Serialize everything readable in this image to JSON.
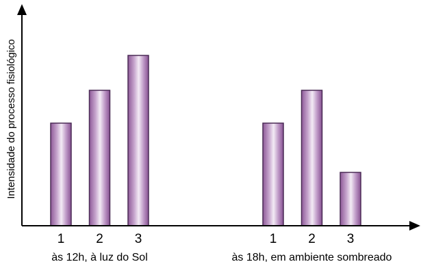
{
  "chart_data": {
    "type": "bar",
    "title": "",
    "xlabel": "",
    "ylabel": "Intensidade do processo fisiológico",
    "y_ticks_shown": false,
    "grid": false,
    "legend": "none",
    "ylim": [
      0,
      100
    ],
    "bar_color": "#9b6aa2",
    "bar_edge_color": "#4a2a55",
    "groups": [
      {
        "label": "às 12h, à luz do Sol",
        "categories": [
          "1",
          "2",
          "3"
        ],
        "values": [
          50,
          66,
          83
        ]
      },
      {
        "label": "às 18h, em ambiente sombreado",
        "categories": [
          "1",
          "2",
          "3"
        ],
        "values": [
          50,
          66,
          26
        ]
      }
    ]
  }
}
